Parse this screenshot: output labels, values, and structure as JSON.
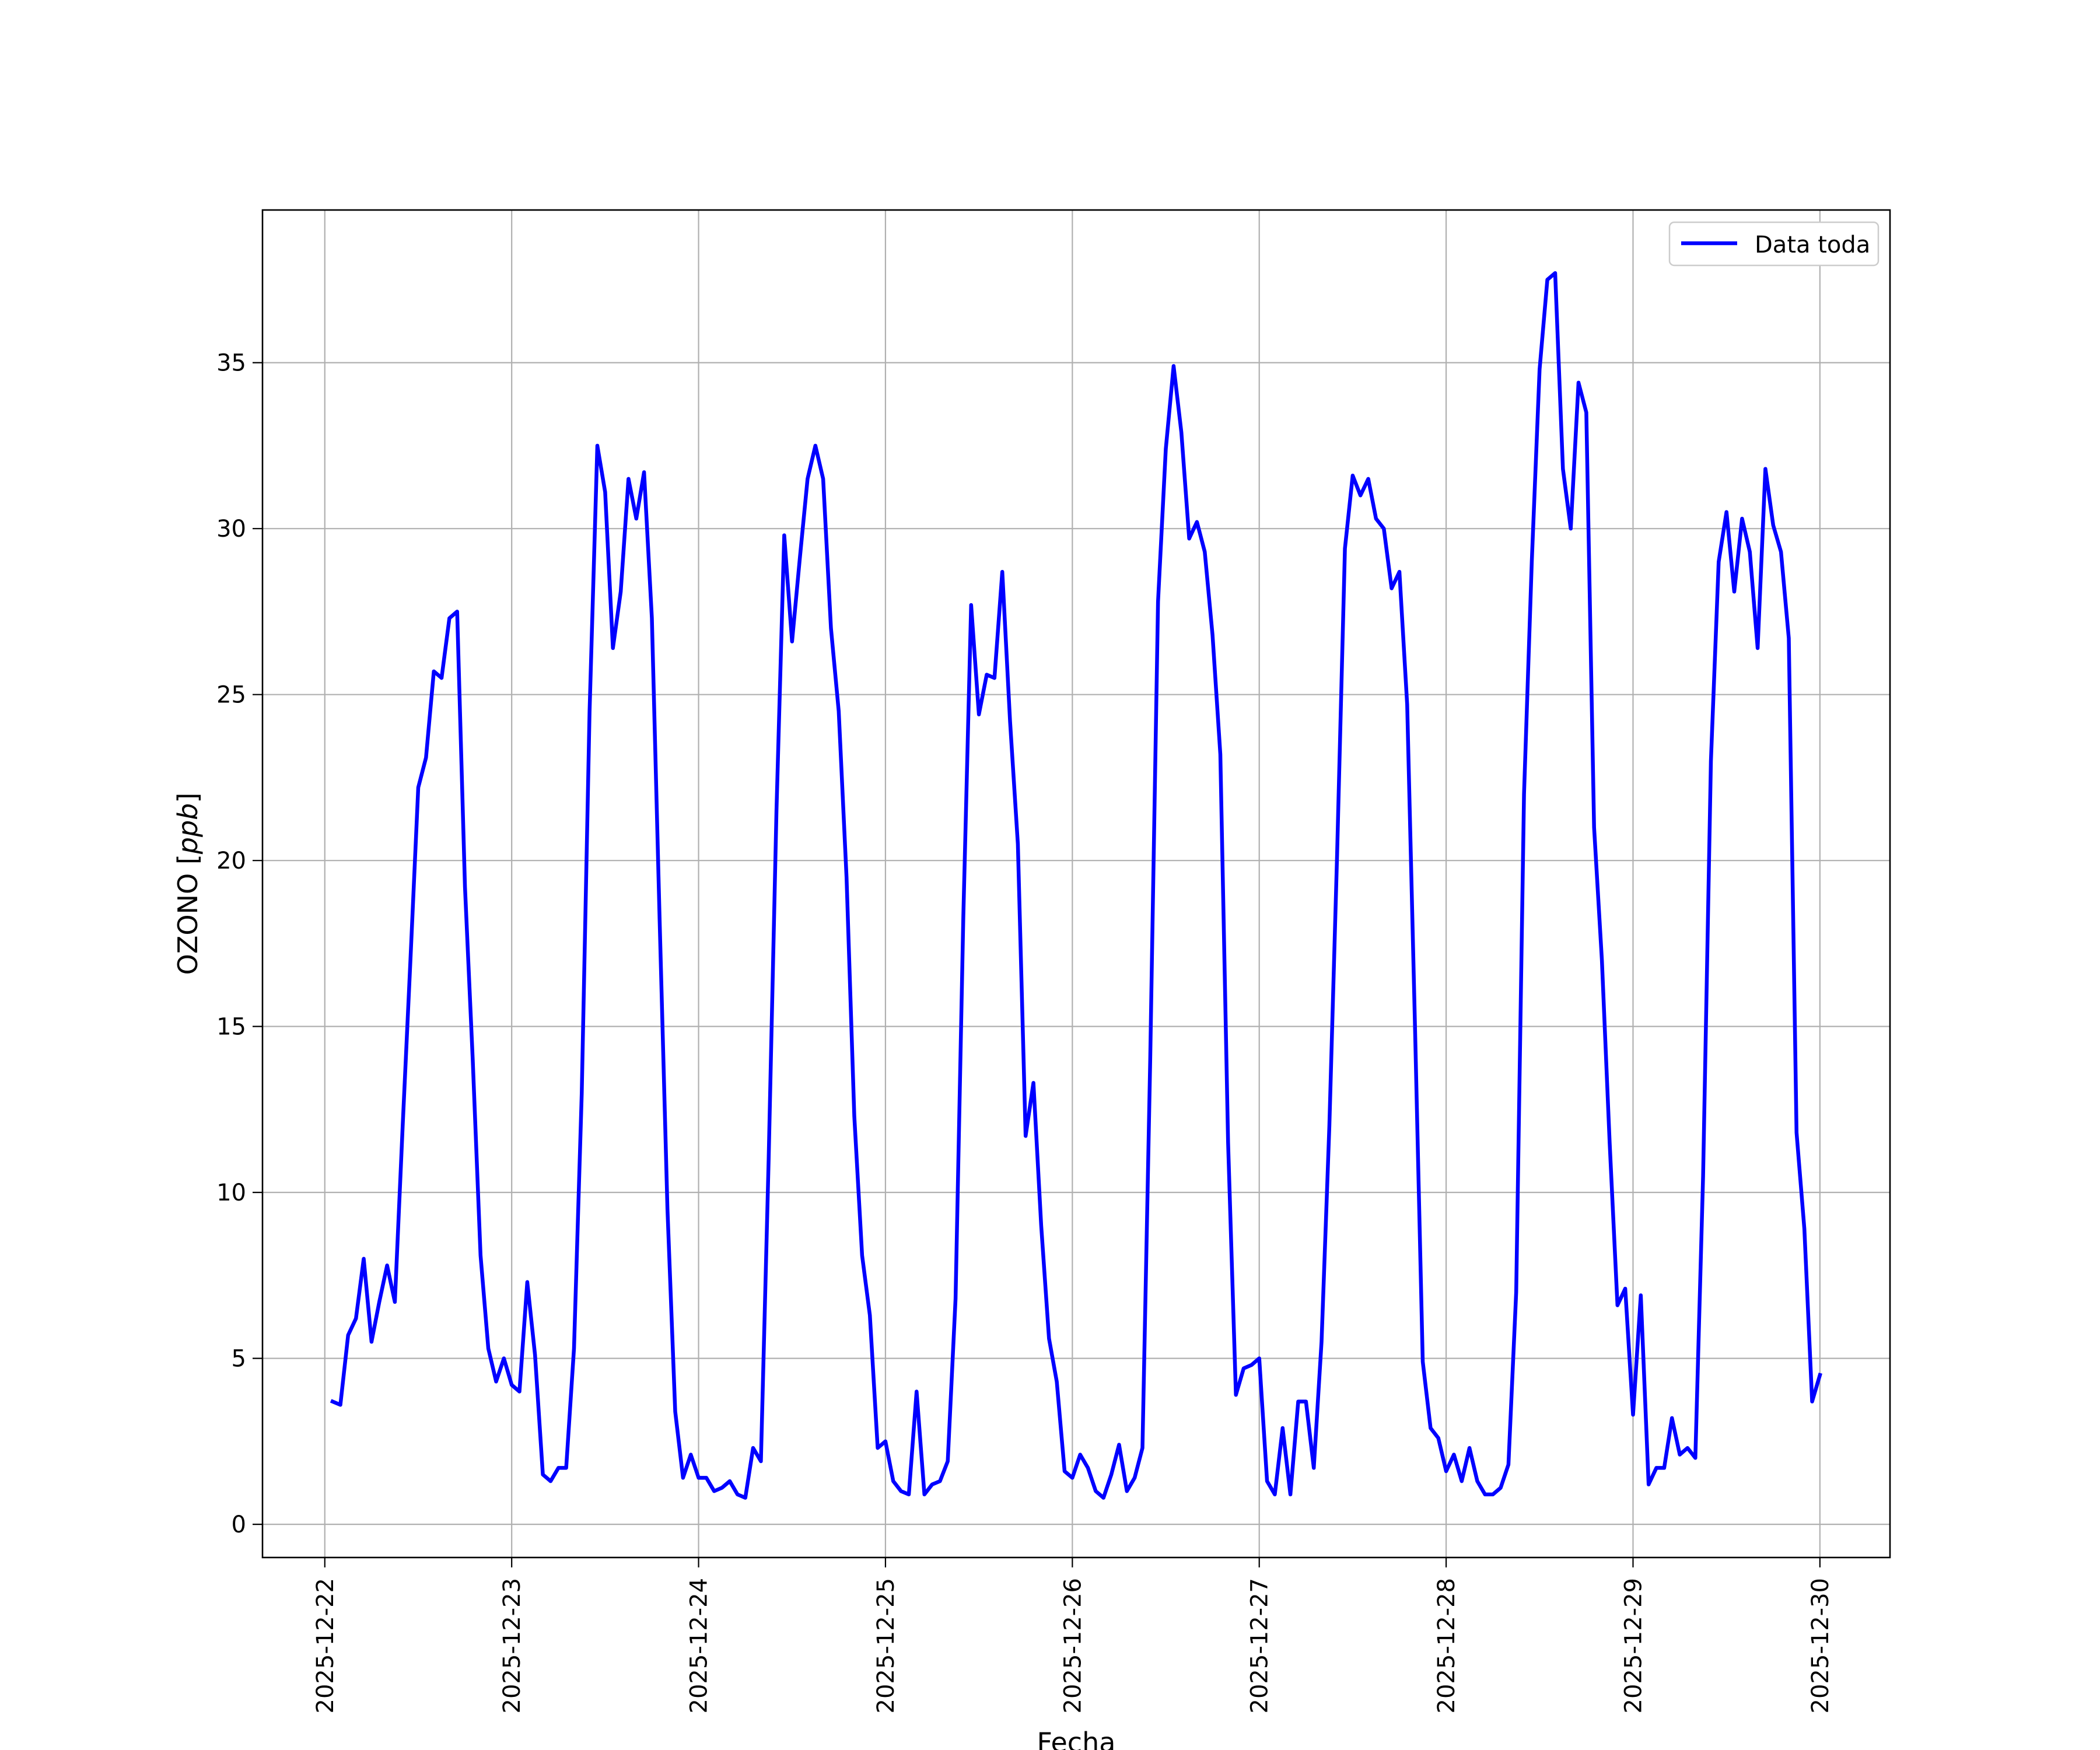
{
  "colors": {
    "line": "#0000ff",
    "grid": "#b0b0b0",
    "frame": "#000000",
    "background": "#ffffff"
  },
  "chart_data": {
    "type": "line",
    "title": "",
    "xlabel": "Fecha",
    "ylabel": "OZONO [ppb]",
    "ylabel_parts": {
      "main": "OZONO [",
      "unit": "ppb",
      "close": "]"
    },
    "xlim": [
      "2025-12-21T16:00",
      "2025-12-30T09:00"
    ],
    "ylim": [
      -1,
      39.6
    ],
    "x_ticks": [
      "2025-12-22",
      "2025-12-23",
      "2025-12-24",
      "2025-12-25",
      "2025-12-26",
      "2025-12-27",
      "2025-12-28",
      "2025-12-29",
      "2025-12-30"
    ],
    "y_ticks": [
      0,
      5,
      10,
      15,
      20,
      25,
      30,
      35
    ],
    "grid": true,
    "legend": {
      "position": "top-right",
      "entries": [
        "Data toda"
      ]
    },
    "series": [
      {
        "name": "Data toda",
        "start": "2025-12-22T01:00",
        "interval_hours": 1,
        "values": [
          3.7,
          3.6,
          5.7,
          6.2,
          8.0,
          5.5,
          6.7,
          7.8,
          6.7,
          12.0,
          17.0,
          22.2,
          23.1,
          25.7,
          25.5,
          27.3,
          27.5,
          19.2,
          14.0,
          8.1,
          5.3,
          4.3,
          5.0,
          4.2,
          4.0,
          7.3,
          5.1,
          1.5,
          1.3,
          1.7,
          1.7,
          5.3,
          13.0,
          24.5,
          32.5,
          31.1,
          26.4,
          28.1,
          31.5,
          30.3,
          31.7,
          27.3,
          18.2,
          9.5,
          3.4,
          1.4,
          2.1,
          1.4,
          1.4,
          1.0,
          1.1,
          1.3,
          0.9,
          0.8,
          2.3,
          1.9,
          11.0,
          21.5,
          29.8,
          26.6,
          29.1,
          31.5,
          32.5,
          31.5,
          27.0,
          24.5,
          19.5,
          12.3,
          8.1,
          6.3,
          2.3,
          2.5,
          1.3,
          1.0,
          0.9,
          4.0,
          0.9,
          1.2,
          1.3,
          1.9,
          6.8,
          18.3,
          27.7,
          24.4,
          25.6,
          25.5,
          28.7,
          24.2,
          20.5,
          11.7,
          13.3,
          9.0,
          5.6,
          4.3,
          1.6,
          1.4,
          2.1,
          1.7,
          1.0,
          0.8,
          1.5,
          2.4,
          1.0,
          1.4,
          2.3,
          14.0,
          27.8,
          32.4,
          34.9,
          32.9,
          29.7,
          30.2,
          29.3,
          26.8,
          23.2,
          11.5,
          3.9,
          4.7,
          4.8,
          5.0,
          1.3,
          0.9,
          2.9,
          0.9,
          3.7,
          3.7,
          1.7,
          5.5,
          12.0,
          20.2,
          29.4,
          31.6,
          31.0,
          31.5,
          30.3,
          30.0,
          28.2,
          28.7,
          24.7,
          15.0,
          4.9,
          2.9,
          2.6,
          1.6,
          2.1,
          1.3,
          2.3,
          1.3,
          0.9,
          0.9,
          1.1,
          1.8,
          7.0,
          22.0,
          29.0,
          34.8,
          37.5,
          37.7,
          31.8,
          30.0,
          34.4,
          33.5,
          21.0,
          17.0,
          11.5,
          6.6,
          7.1,
          3.3,
          6.9,
          1.2,
          1.7,
          1.7,
          3.2,
          2.1,
          2.3,
          2.0,
          10.5,
          23.0,
          29.0,
          30.5,
          28.1,
          30.3,
          29.3,
          26.4,
          31.8,
          30.1,
          29.3,
          26.7,
          11.8,
          8.9,
          3.7,
          4.5
        ]
      }
    ]
  }
}
